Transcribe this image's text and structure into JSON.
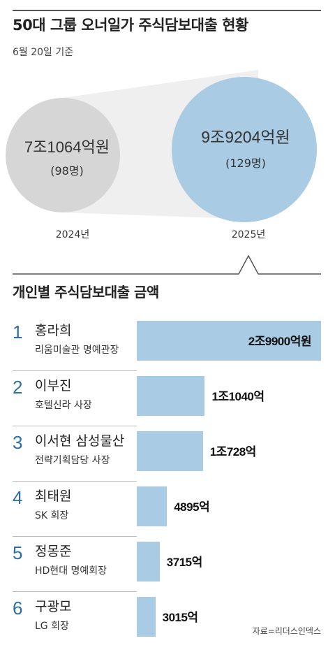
{
  "title": "50대 그룹 오너일가 주식담보대출 현황",
  "subtitle": "6월 20일 기준",
  "section2_title": "개인별 주식담보대출 금액",
  "source": "자료=리더스인덱스",
  "colors": {
    "gray": "#d6d6d6",
    "blue": "#a9cbe3",
    "number": "#2c6fa6",
    "connector": "#efefef"
  },
  "chart_data": [
    {
      "type": "bubble",
      "categories": [
        "2024년",
        "2025년"
      ],
      "values_krw_eok": [
        71064,
        99204
      ],
      "people": [
        98,
        129
      ],
      "value_labels": [
        "7조1064억원",
        "9조9204억원"
      ],
      "count_labels": [
        "(98명)",
        "(129명)"
      ]
    },
    {
      "type": "bar",
      "orientation": "horizontal",
      "unit": "억원",
      "rows": [
        {
          "rank": "1",
          "name": "홍라희",
          "role": "리움미술관 명예관장",
          "value": 29900,
          "label": "2조9900억원"
        },
        {
          "rank": "2",
          "name": "이부진",
          "role": "호텔신라 사장",
          "value": 11040,
          "label": "1조1040억"
        },
        {
          "rank": "3",
          "name": "이서현 삼성물산",
          "role": "전략기획담당 사장",
          "value": 10728,
          "label": "1조728억"
        },
        {
          "rank": "4",
          "name": "최태원",
          "role": "SK 회장",
          "value": 4895,
          "label": "4895억"
        },
        {
          "rank": "5",
          "name": "정몽준",
          "role": "HD현대 명예회장",
          "value": 3715,
          "label": "3715억"
        },
        {
          "rank": "6",
          "name": "구광모",
          "role": "LG 회장",
          "value": 3015,
          "label": "3015억"
        }
      ]
    }
  ]
}
